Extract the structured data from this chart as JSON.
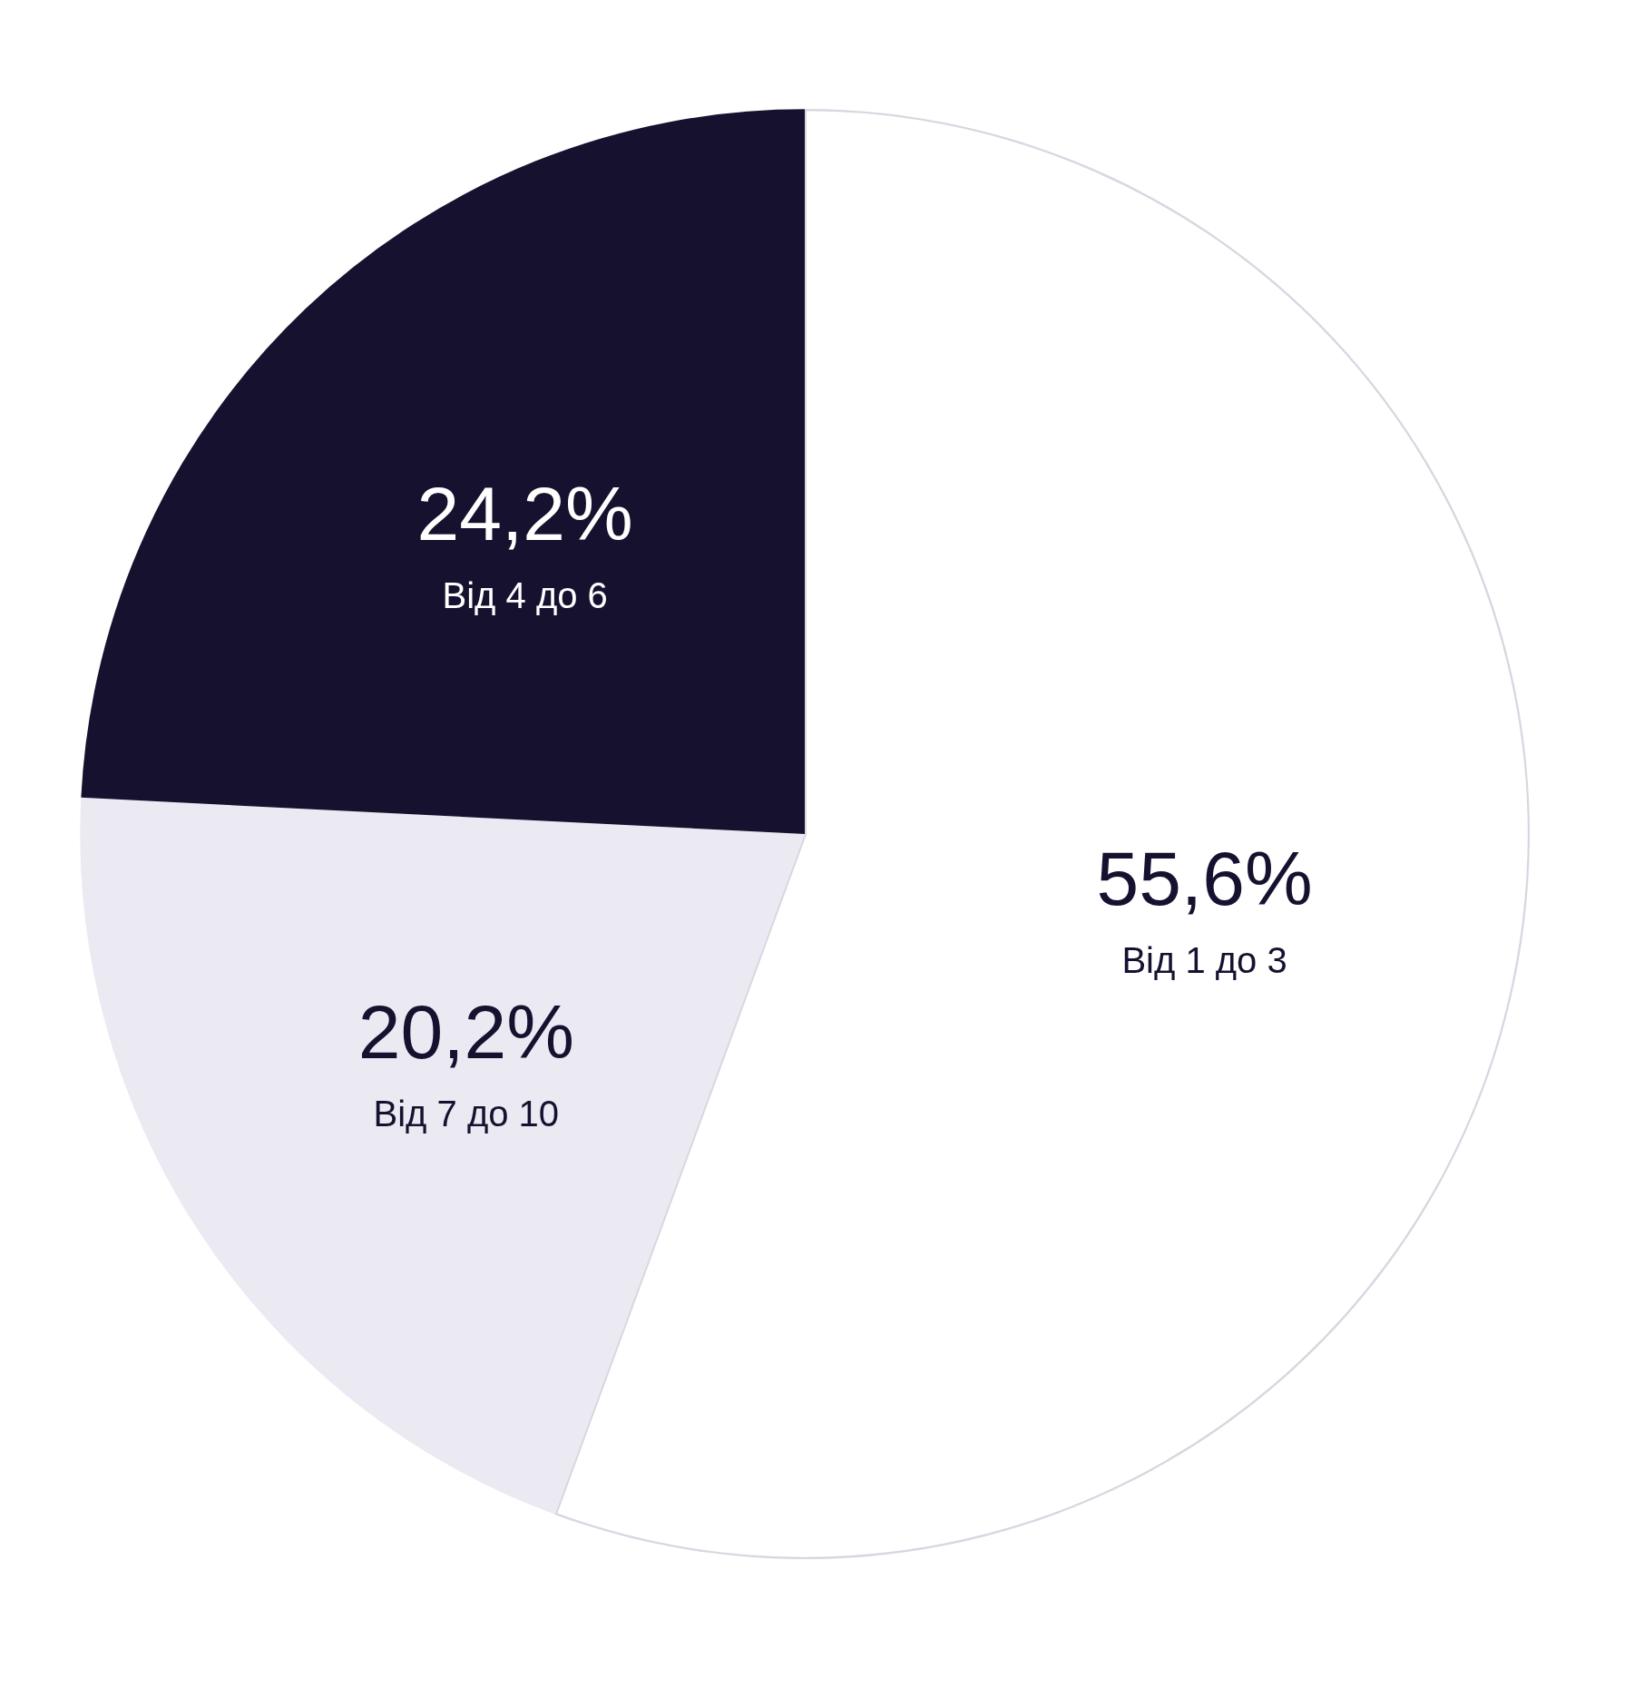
{
  "chart_data": {
    "type": "pie",
    "categories": [
      "Від 1 до 3",
      "Від 7 до 10",
      "Від 4 до 6"
    ],
    "values": [
      55.6,
      20.2,
      24.2
    ],
    "value_labels": [
      "55,6%",
      "20,2%",
      "24,2%"
    ],
    "colors": [
      "#ffffff",
      "#ebe9f2",
      "#16112f"
    ],
    "legend": false
  }
}
